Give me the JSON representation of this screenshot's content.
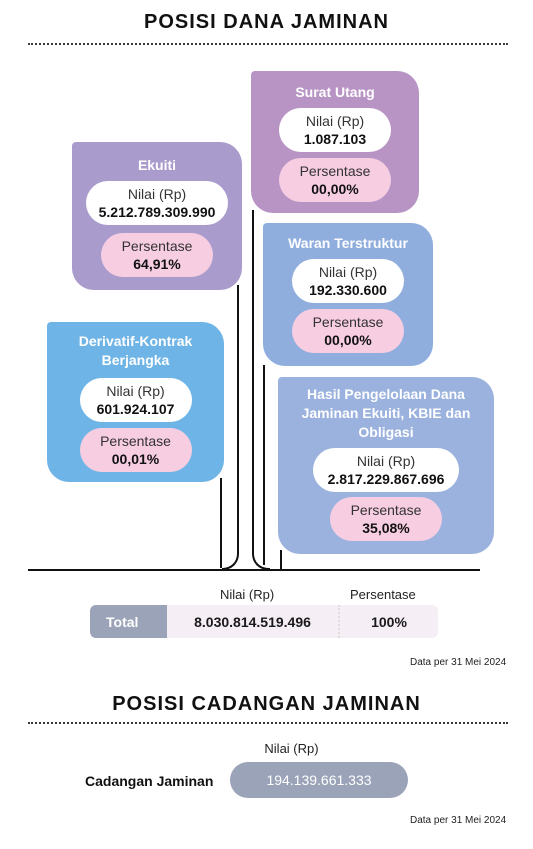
{
  "dana": {
    "title": "POSISI DANA JAMINAN",
    "cards": {
      "ekuiti": {
        "title": "Ekuiti",
        "nilai_label": "Nilai (Rp)",
        "nilai": "5.212.789.309.990",
        "persen_label": "Persentase",
        "persen": "64,91%"
      },
      "surat_utang": {
        "title": "Surat Utang",
        "nilai_label": "Nilai (Rp)",
        "nilai": "1.087.103",
        "persen_label": "Persentase",
        "persen": "00,00%"
      },
      "waran": {
        "title": "Waran Terstruktur",
        "nilai_label": "Nilai (Rp)",
        "nilai": "192.330.600",
        "persen_label": "Persentase",
        "persen": "00,00%"
      },
      "derivatif": {
        "title_1": "Derivatif-Kontrak",
        "title_2": "Berjangka",
        "nilai_label": "Nilai (Rp)",
        "nilai": "601.924.107",
        "persen_label": "Persentase",
        "persen": "00,01%"
      },
      "hasil": {
        "title_1": "Hasil Pengelolaan Dana",
        "title_2": "Jaminan Ekuiti, KBIE dan",
        "title_3": "Obligasi",
        "nilai_label": "Nilai (Rp)",
        "nilai": "2.817.229.867.696",
        "persen_label": "Persentase",
        "persen": "35,08%"
      }
    },
    "total": {
      "header_nilai": "Nilai (Rp)",
      "header_persen": "Persentase",
      "label": "Total",
      "nilai": "8.030.814.519.496",
      "persen": "100%"
    },
    "note": "Data per 31 Mei 2024"
  },
  "cadangan": {
    "title": "POSISI CADANGAN JAMINAN",
    "header_nilai": "Nilai (Rp)",
    "label": "Cadangan Jaminan",
    "nilai": "194.139.661.333",
    "note": "Data per 31 Mei 2024"
  },
  "colors": {
    "ekuiti": "#a99bcb",
    "surat_utang": "#b894c4",
    "waran": "#8faedd",
    "derivatif": "#6fb4e6",
    "hasil": "#9bb2de",
    "pink": "#f7cde2",
    "total_label": "#9ba3b8",
    "cadangan_pill": "#9ba3b8"
  }
}
